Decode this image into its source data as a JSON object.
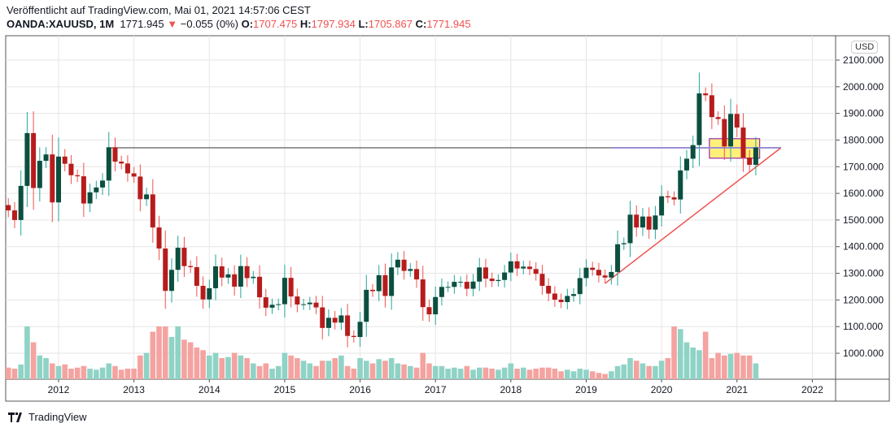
{
  "header": {
    "published": "Veröffentlicht auf TradingView.com, Mai 01, 2021 14:57:06 CEST",
    "symbol": "OANDA:XAUUSD, 1M",
    "last": "1771.945",
    "change": "−0.055 (0%)",
    "o_label": "O:",
    "o": "1707.475",
    "h_label": "H:",
    "h": "1797.934",
    "l_label": "L:",
    "l": "1705.867",
    "c_label": "C:",
    "c": "1771.945"
  },
  "currency": "USD",
  "footer": {
    "brand": "TradingView"
  },
  "colors": {
    "up": "#0b4f3f",
    "down": "#b71c1c",
    "up_vol": "#8fd3c6",
    "down_vol": "#f4a3a0",
    "trend": "#ef5350",
    "level": "#9b8fd6",
    "box": "#fff07a"
  },
  "chart_data": {
    "type": "candlestick",
    "start": "2011-05",
    "interval": "1M",
    "y_ticks": [
      2100,
      2000,
      1900,
      1800,
      1700,
      1600,
      1500,
      1400,
      1300,
      1200,
      1100,
      1000
    ],
    "y_tick_labels": [
      "2100.000",
      "2000.000",
      "1900.000",
      "1800.000",
      "1700.000",
      "1600.000",
      "1500.000",
      "1400.000",
      "1300.000",
      "1200.000",
      "1100.000",
      "1000.000"
    ],
    "x_tick_labels": [
      "2012",
      "2013",
      "2014",
      "2015",
      "2016",
      "2017",
      "2018",
      "2019",
      "2020",
      "2021",
      "2022"
    ],
    "ylim": [
      930,
      2160
    ],
    "open0": 1556,
    "close": [
      1536,
      1500,
      1628,
      1826,
      1620,
      1722,
      1746,
      1566,
      1738,
      1711,
      1668,
      1664,
      1562,
      1604,
      1622,
      1648,
      1773,
      1719,
      1712,
      1675,
      1663,
      1578,
      1596,
      1472,
      1393,
      1234,
      1313,
      1396,
      1327,
      1323,
      1253,
      1202,
      1244,
      1326,
      1284,
      1296,
      1250,
      1327,
      1282,
      1287,
      1210,
      1171,
      1182,
      1184,
      1283,
      1213,
      1183,
      1184,
      1190,
      1172,
      1095,
      1133,
      1115,
      1142,
      1065,
      1061,
      1118,
      1238,
      1233,
      1293,
      1215,
      1322,
      1351,
      1309,
      1316,
      1277,
      1173,
      1146,
      1211,
      1249,
      1249,
      1268,
      1268,
      1242,
      1269,
      1322,
      1280,
      1271,
      1275,
      1303,
      1345,
      1318,
      1325,
      1316,
      1298,
      1253,
      1224,
      1201,
      1192,
      1215,
      1222,
      1282,
      1321,
      1313,
      1292,
      1284,
      1305,
      1409,
      1413,
      1520,
      1472,
      1513,
      1464,
      1517,
      1589,
      1585,
      1577,
      1686,
      1730,
      1781,
      1975,
      1968,
      1886,
      1879,
      1776,
      1898,
      1847,
      1734,
      1707,
      1771.945
    ],
    "volume": [
      22,
      20,
      28,
      100,
      70,
      45,
      40,
      30,
      25,
      28,
      20,
      22,
      25,
      20,
      18,
      22,
      30,
      25,
      18,
      20,
      20,
      45,
      50,
      90,
      100,
      100,
      80,
      100,
      75,
      70,
      60,
      55,
      45,
      50,
      40,
      42,
      50,
      45,
      40,
      30,
      25,
      30,
      20,
      25,
      50,
      45,
      40,
      35,
      30,
      25,
      35,
      35,
      40,
      45,
      25,
      20,
      40,
      35,
      30,
      38,
      35,
      40,
      30,
      28,
      25,
      22,
      50,
      30,
      25,
      25,
      20,
      22,
      20,
      25,
      18,
      22,
      22,
      20,
      18,
      22,
      30,
      20,
      22,
      18,
      20,
      22,
      22,
      20,
      15,
      18,
      15,
      20,
      18,
      15,
      12,
      10,
      15,
      25,
      28,
      40,
      35,
      30,
      25,
      25,
      35,
      40,
      100,
      95,
      70,
      60,
      55,
      90,
      40,
      50,
      45,
      48,
      50,
      45,
      45,
      30
    ],
    "annotations": {
      "horizontal_level": 1771,
      "trendline": [
        [
          "2019-04",
          1262
        ],
        [
          "2021-08",
          1771
        ]
      ],
      "box": {
        "from": "2020-09",
        "to": "2021-05",
        "top": 1805,
        "bottom": 1732
      }
    }
  }
}
